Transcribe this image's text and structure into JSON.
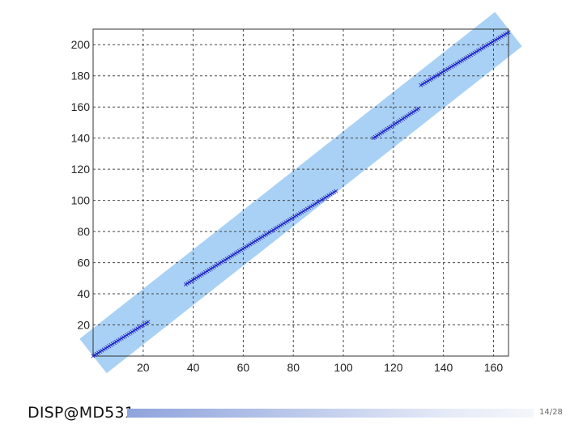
{
  "chart_data": {
    "type": "scatter",
    "title": "",
    "xlabel": "",
    "ylabel": "",
    "xlim": [
      0,
      166
    ],
    "ylim": [
      0,
      210
    ],
    "xticks": [
      20,
      40,
      60,
      80,
      100,
      120,
      140,
      160
    ],
    "yticks": [
      20,
      40,
      60,
      80,
      100,
      120,
      140,
      160,
      180,
      200
    ],
    "grid": true,
    "grid_style": "dashed",
    "marker": "x",
    "series_color": "#1f22c8",
    "band_color": "#a9d1f5",
    "band": {
      "x": [
        0,
        166
      ],
      "y": [
        0,
        210
      ]
    },
    "segments": [
      {
        "x": [
          0,
          22
        ],
        "y": [
          0,
          22
        ]
      },
      {
        "x": [
          37,
          97
        ],
        "y": [
          46,
          106
        ]
      },
      {
        "x": [
          112,
          130
        ],
        "y": [
          140,
          159
        ]
      },
      {
        "x": [
          131,
          166
        ],
        "y": [
          174,
          208
        ]
      }
    ]
  },
  "footer": {
    "brand": "DISP@MD531",
    "page": "14/28"
  }
}
